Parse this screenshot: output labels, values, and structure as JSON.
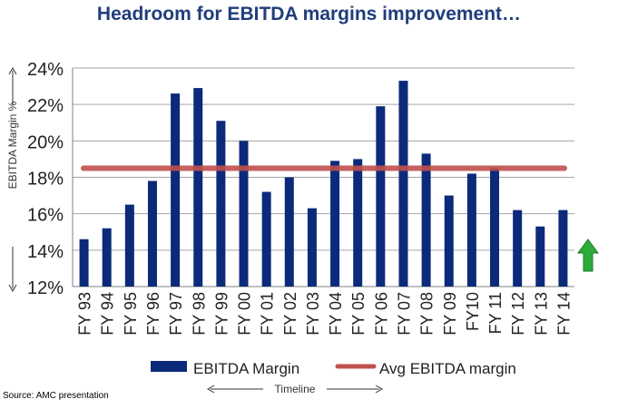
{
  "title": "Headroom for EBITDA margins improvement…",
  "source": "Source: AMC presentation",
  "colors": {
    "bar": "#0c2a7a",
    "avg_line": "#c0504d",
    "title": "#1f3d7a",
    "arrow": "#2eaa3a"
  },
  "chart_data": {
    "type": "bar",
    "categories": [
      "FY 93",
      "FY 94",
      "FY 95",
      "FY 96",
      "FY 97",
      "FY 98",
      "FY 99",
      "FY 00",
      "FY 01",
      "FY 02",
      "FY 03",
      "FY 04",
      "FY 05",
      "FY 06",
      "FY 07",
      "FY 08",
      "FY 09",
      "FY10",
      "FY 11",
      "FY 12",
      "FY 13",
      "FY 14"
    ],
    "series": [
      {
        "name": "EBITDA Margin",
        "values": [
          14.6,
          15.2,
          16.5,
          17.8,
          22.6,
          22.9,
          21.1,
          20.0,
          17.2,
          18.0,
          16.3,
          18.9,
          19.0,
          21.9,
          23.3,
          19.3,
          17.0,
          18.2,
          18.5,
          16.2,
          15.3,
          16.2
        ]
      }
    ],
    "avg_line": {
      "name": "Avg EBITDA margin",
      "value": 18.5
    },
    "ylabel": "EBITDA Margin %",
    "xlabel": "Timeline",
    "ylim": [
      12,
      24
    ],
    "yticks": [
      "12%",
      "14%",
      "16%",
      "18%",
      "20%",
      "22%",
      "24%"
    ],
    "grid": true,
    "legend": "bottom",
    "annotation": "up-arrow-icon"
  }
}
